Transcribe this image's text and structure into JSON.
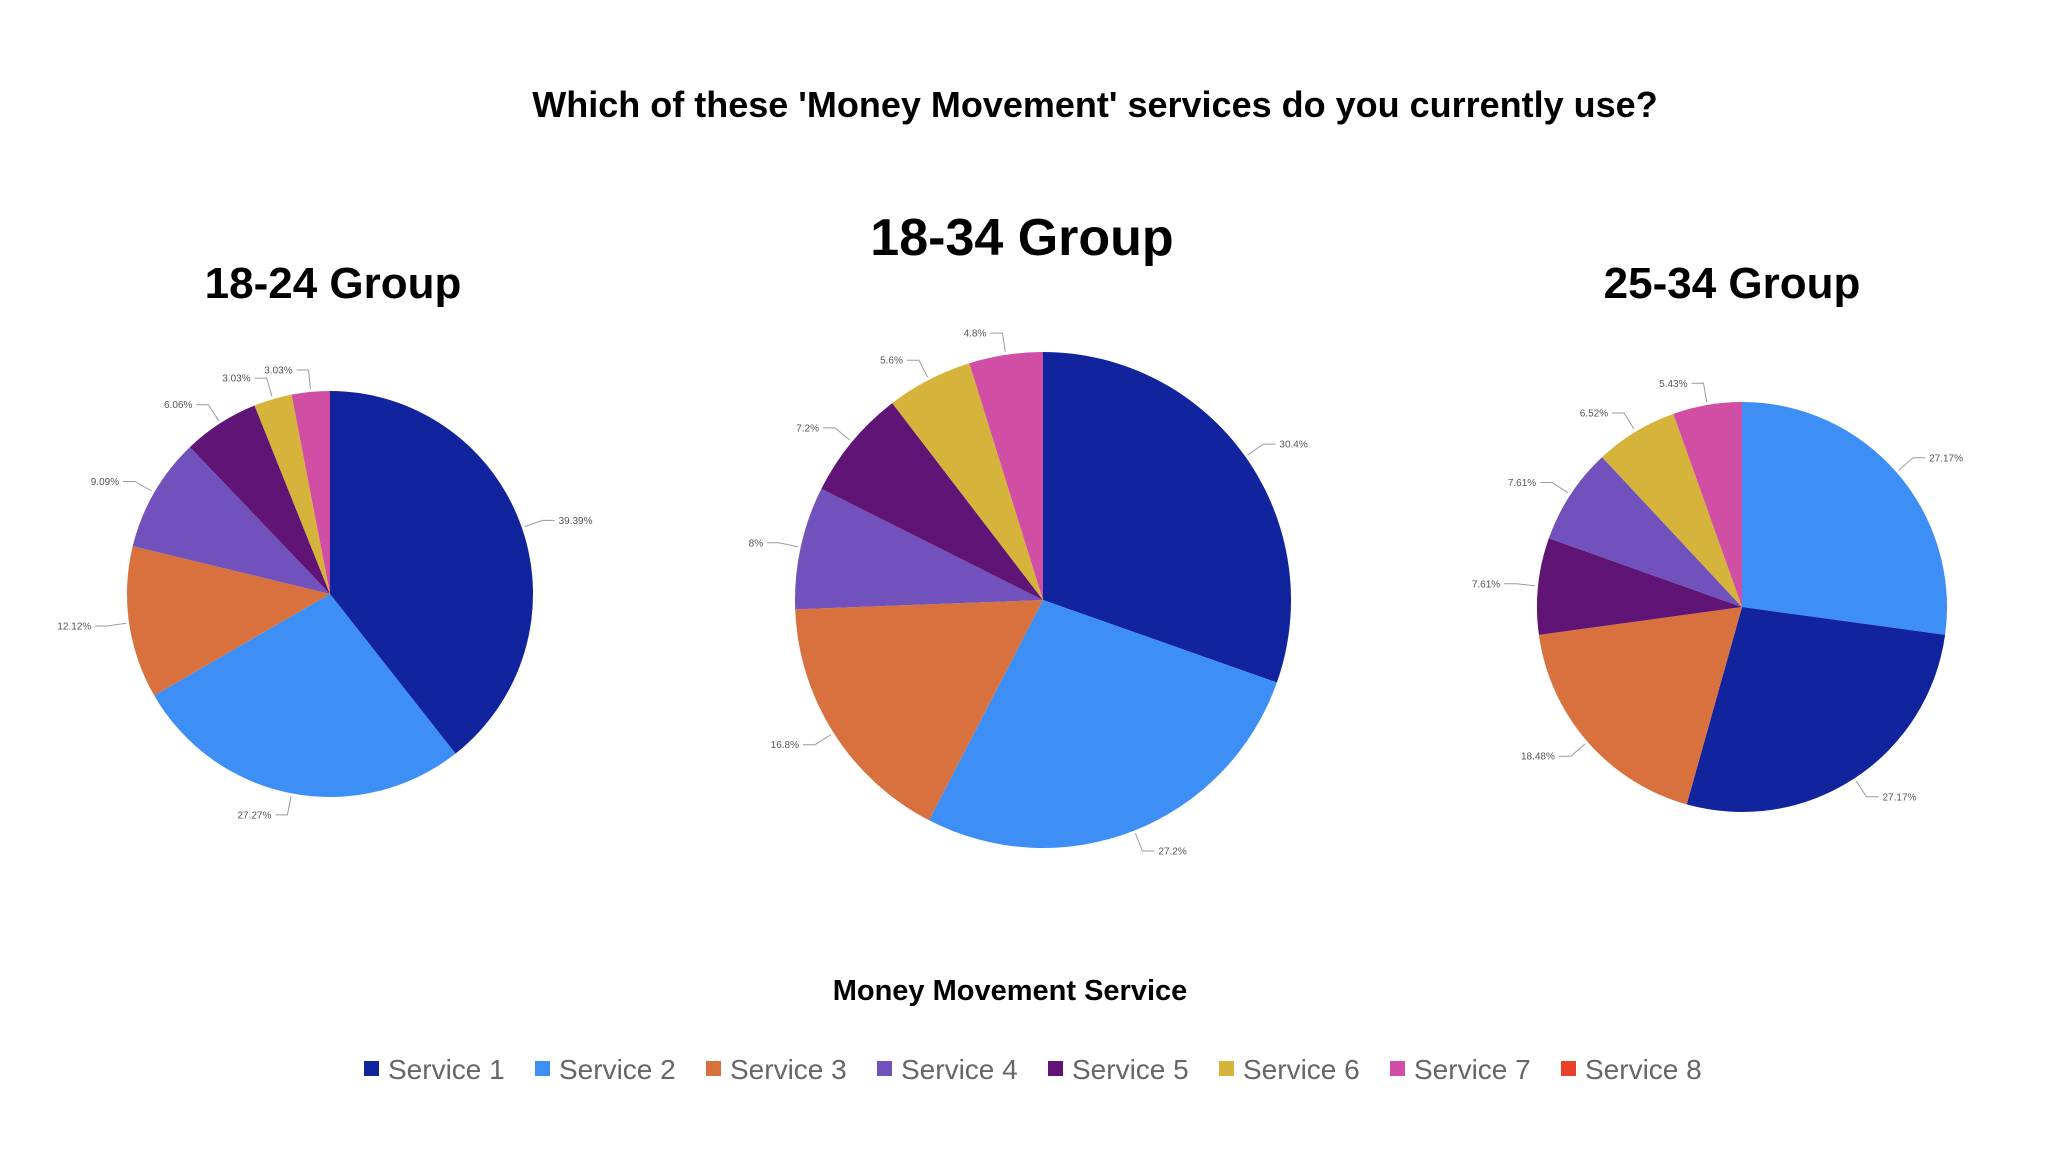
{
  "title": "Which of these 'Money Movement' services do you currently use?",
  "legend": {
    "title": "Money Movement Service",
    "items": [
      {
        "label": "Service 1",
        "color": "#12239E"
      },
      {
        "label": "Service 2",
        "color": "#3E8FF5"
      },
      {
        "label": "Service 3",
        "color": "#D9713F"
      },
      {
        "label": "Service 4",
        "color": "#7152BC"
      },
      {
        "label": "Service 5",
        "color": "#601576"
      },
      {
        "label": "Service 6",
        "color": "#D6B33B"
      },
      {
        "label": "Service 7",
        "color": "#D04FA5"
      },
      {
        "label": "Service 8",
        "color": "#E8402B"
      }
    ]
  },
  "chart_data": [
    {
      "type": "pie",
      "title": "18-24 Group",
      "slices": [
        {
          "category": "Service 1",
          "value": 39.39,
          "label": "39.39%"
        },
        {
          "category": "Service 2",
          "value": 27.27,
          "label": "27.27%"
        },
        {
          "category": "Service 3",
          "value": 12.12,
          "label": "12.12%"
        },
        {
          "category": "Service 4",
          "value": 9.09,
          "label": "9.09%"
        },
        {
          "category": "Service 5",
          "value": 6.06,
          "label": "6.06%"
        },
        {
          "category": "Service 6",
          "value": 3.03,
          "label": "3.03%"
        },
        {
          "category": "Service 7",
          "value": 3.03,
          "label": "3.03%"
        }
      ]
    },
    {
      "type": "pie",
      "title": "18-34 Group",
      "slices": [
        {
          "category": "Service 1",
          "value": 30.4,
          "label": "30.4%"
        },
        {
          "category": "Service 2",
          "value": 27.2,
          "label": "27.2%"
        },
        {
          "category": "Service 3",
          "value": 16.8,
          "label": "16.8%"
        },
        {
          "category": "Service 4",
          "value": 8,
          "label": "8%"
        },
        {
          "category": "Service 5",
          "value": 7.2,
          "label": "7.2%"
        },
        {
          "category": "Service 6",
          "value": 5.6,
          "label": "5.6%"
        },
        {
          "category": "Service 7",
          "value": 4.8,
          "label": "4.8%"
        }
      ]
    },
    {
      "type": "pie",
      "title": "25-34 Group",
      "slices": [
        {
          "category": "Service 2",
          "value": 27.17,
          "label": "27.17%"
        },
        {
          "category": "Service 1",
          "value": 27.17,
          "label": "27.17%"
        },
        {
          "category": "Service 3",
          "value": 18.48,
          "label": "18.48%"
        },
        {
          "category": "Service 5",
          "value": 7.61,
          "label": "7.61%"
        },
        {
          "category": "Service 4",
          "value": 7.61,
          "label": "7.61%"
        },
        {
          "category": "Service 6",
          "value": 6.52,
          "label": "6.52%"
        },
        {
          "category": "Service 7",
          "value": 5.43,
          "label": "5.43%"
        }
      ]
    }
  ]
}
